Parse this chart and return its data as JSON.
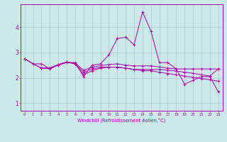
{
  "xlabel": "Windchill (Refroidissement éolien,°C)",
  "bg_color": "#cce8e8",
  "line_color": "#aa00aa",
  "grid_color": "#aabbcc",
  "xticks": [
    0,
    1,
    2,
    3,
    4,
    5,
    6,
    7,
    8,
    9,
    10,
    11,
    12,
    13,
    14,
    15,
    16,
    17,
    18,
    19,
    20,
    21,
    22,
    23
  ],
  "yticks": [
    1,
    2,
    3,
    4
  ],
  "ylim": [
    0.7,
    4.9
  ],
  "xlim": [
    -0.5,
    23.5
  ],
  "line1": {
    "x": [
      0,
      1,
      2,
      3,
      4,
      5,
      6,
      7,
      8,
      9,
      10,
      11,
      12,
      13,
      14,
      15,
      16,
      17,
      18,
      19,
      20,
      21,
      22,
      23
    ],
    "y": [
      2.75,
      2.55,
      2.55,
      2.35,
      2.5,
      2.6,
      2.6,
      2.05,
      2.5,
      2.55,
      2.9,
      3.55,
      3.6,
      3.3,
      4.6,
      3.85,
      2.6,
      2.6,
      2.35,
      1.75,
      1.9,
      2.05,
      2.05,
      1.45
    ]
  },
  "line2": {
    "x": [
      0,
      1,
      2,
      3,
      4,
      5,
      6,
      7,
      8,
      9,
      10,
      11,
      12,
      13,
      14,
      15,
      16,
      17,
      18,
      19,
      20,
      21,
      22,
      23
    ],
    "y": [
      2.75,
      2.55,
      2.38,
      2.38,
      2.52,
      2.62,
      2.58,
      2.3,
      2.42,
      2.48,
      2.52,
      2.55,
      2.5,
      2.47,
      2.47,
      2.47,
      2.43,
      2.38,
      2.35,
      2.35,
      2.35,
      2.35,
      2.35,
      2.35
    ]
  },
  "line3": {
    "x": [
      0,
      1,
      2,
      3,
      4,
      5,
      6,
      7,
      8,
      9,
      10,
      11,
      12,
      13,
      14,
      15,
      16,
      17,
      18,
      19,
      20,
      21,
      22,
      23
    ],
    "y": [
      2.75,
      2.55,
      2.38,
      2.38,
      2.52,
      2.62,
      2.55,
      2.22,
      2.35,
      2.42,
      2.42,
      2.42,
      2.38,
      2.33,
      2.28,
      2.28,
      2.22,
      2.17,
      2.12,
      2.07,
      2.02,
      1.97,
      1.92,
      1.87
    ]
  },
  "line4": {
    "x": [
      2,
      3,
      4,
      5,
      6,
      7,
      8,
      9,
      10,
      11,
      12,
      13,
      14,
      15,
      16,
      17,
      18,
      19,
      20,
      21,
      22,
      23
    ],
    "y": [
      2.38,
      2.38,
      2.52,
      2.62,
      2.55,
      2.12,
      2.28,
      2.38,
      2.42,
      2.42,
      2.38,
      2.33,
      2.33,
      2.33,
      2.33,
      2.3,
      2.27,
      2.22,
      2.18,
      2.12,
      2.07,
      2.35
    ]
  }
}
